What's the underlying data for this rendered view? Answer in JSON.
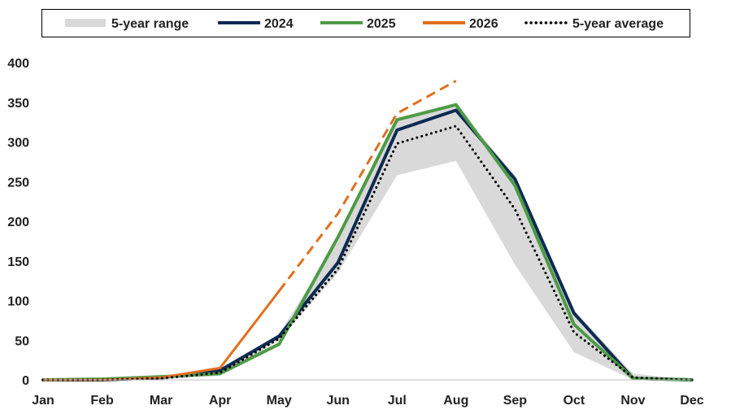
{
  "chart_data": {
    "type": "line",
    "categories": [
      "Jan",
      "Feb",
      "Mar",
      "Apr",
      "May",
      "Jun",
      "Jul",
      "Aug",
      "Sep",
      "Oct",
      "Nov",
      "Dec"
    ],
    "ylim": [
      0,
      400
    ],
    "yticks": [
      "0",
      "50",
      "100",
      "150",
      "200",
      "250",
      "300",
      "350",
      "400"
    ],
    "grid": false,
    "legend_position": "top",
    "range": {
      "name": "5-year range",
      "color": "#d9d9d9",
      "low": [
        0,
        0,
        1,
        5,
        50,
        135,
        258,
        276,
        145,
        35,
        0,
        0
      ],
      "high": [
        0,
        1,
        4,
        14,
        58,
        175,
        330,
        345,
        258,
        88,
        8,
        0
      ]
    },
    "series": [
      {
        "name": "2024",
        "color": "#0e2a52",
        "style": "solid",
        "width": 4,
        "values": [
          0,
          0,
          3,
          12,
          55,
          148,
          315,
          340,
          253,
          84,
          2,
          0
        ]
      },
      {
        "name": "2025",
        "color": "#4e9a47",
        "style": "solid",
        "width": 4,
        "values": [
          0,
          1,
          4,
          8,
          45,
          180,
          328,
          347,
          245,
          70,
          2,
          0
        ]
      },
      {
        "name": "2026",
        "color": "#e07020",
        "style": "solid",
        "width": 3,
        "values": [
          0,
          0,
          3,
          15,
          112,
          null,
          null,
          null,
          null,
          null,
          null,
          null
        ]
      },
      {
        "name": "2026 projection",
        "color": "#e07020",
        "style": "dashed",
        "width": 3,
        "legend": false,
        "values": [
          null,
          null,
          null,
          null,
          112,
          210,
          336,
          377,
          null,
          null,
          null,
          null
        ]
      },
      {
        "name": "5-year average",
        "color": "#000000",
        "style": "dotted",
        "width": 3,
        "values": [
          0,
          0,
          2,
          9,
          52,
          140,
          298,
          320,
          215,
          60,
          3,
          0
        ]
      }
    ],
    "legend": [
      {
        "label": "5-year range",
        "kind": "band",
        "color": "#d9d9d9"
      },
      {
        "label": "2024",
        "kind": "solid",
        "color": "#0e2a52"
      },
      {
        "label": "2025",
        "kind": "solid",
        "color": "#4e9a47"
      },
      {
        "label": "2026",
        "kind": "solid",
        "color": "#e07020"
      },
      {
        "label": "5-year average",
        "kind": "dotted",
        "color": "#000000"
      }
    ]
  }
}
